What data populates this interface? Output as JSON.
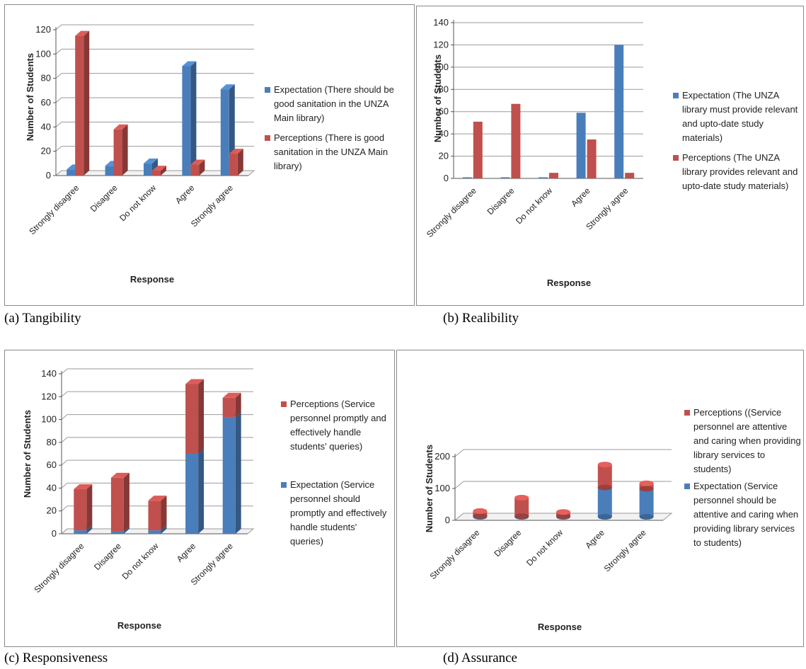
{
  "colors": {
    "expectation": "#4a7ebb",
    "perception": "#c0504d"
  },
  "captions": {
    "a": "(a) Tangibility",
    "b": "(b) Realibility",
    "c": "(c) Responsiveness",
    "d": "(d) Assurance"
  },
  "chart_data": [
    {
      "id": "a",
      "type": "bar",
      "mode": "clustered-3d",
      "ylabel": "Number of Students",
      "xlabel": "Response",
      "ylim": [
        0,
        120
      ],
      "yticks": [
        0,
        20,
        40,
        60,
        80,
        100,
        120
      ],
      "grid": true,
      "legend_position": "right",
      "categories": [
        "Strongly disagree",
        "Disagree",
        "Do not know",
        "Agree",
        "Strongly agree"
      ],
      "series": [
        {
          "name": "Expectation (There should be good sanitation in the UNZA Main library)",
          "values": [
            5,
            8,
            10,
            90,
            71
          ],
          "color": "expectation"
        },
        {
          "name": "Perceptions (There is good sanitation in the UNZA Main library)",
          "values": [
            115,
            38,
            4,
            9,
            18
          ],
          "color": "perception"
        }
      ]
    },
    {
      "id": "b",
      "type": "bar",
      "mode": "clustered",
      "ylabel": "Number of Students",
      "xlabel": "Response",
      "ylim": [
        0,
        140
      ],
      "yticks": [
        0,
        20,
        40,
        60,
        80,
        100,
        120,
        140
      ],
      "grid": true,
      "legend_position": "right",
      "categories": [
        "Strongly disagree",
        "Disagree",
        "Do not know",
        "Agree",
        "Strongly agree"
      ],
      "series": [
        {
          "name": "Expectation (The UNZA library must provide relevant and upto-date study materials)",
          "values": [
            1,
            1,
            1,
            59,
            120
          ],
          "color": "expectation"
        },
        {
          "name": "Perceptions (The UNZA library provides relevant and upto-date study materials)",
          "values": [
            51,
            67,
            5,
            35,
            5
          ],
          "color": "perception"
        }
      ]
    },
    {
      "id": "c",
      "type": "bar",
      "mode": "stacked-3d",
      "ylabel": "Number of Students",
      "xlabel": "Response",
      "ylim": [
        0,
        140
      ],
      "yticks": [
        0,
        20,
        40,
        60,
        80,
        100,
        120,
        140
      ],
      "grid": true,
      "legend_position": "right",
      "categories": [
        "Strongly disagree",
        "Disagree",
        "Do not know",
        "Agree",
        "Strongly agree"
      ],
      "series": [
        {
          "name": "Expectation (Service personnel should promptly and effectively handle students' queries)",
          "values": [
            3,
            2,
            3,
            70,
            102
          ],
          "color": "expectation"
        },
        {
          "name": "Perceptions (Service personnel promptly and effectively handle students' queries)",
          "values": [
            36,
            47,
            26,
            61,
            17
          ],
          "color": "perception"
        }
      ]
    },
    {
      "id": "d",
      "type": "bar",
      "mode": "stacked-cylinder",
      "ylabel": "Number of Students",
      "xlabel": "Response",
      "ylim": [
        0,
        200
      ],
      "yticks": [
        0,
        100,
        200
      ],
      "grid": true,
      "legend_position": "right",
      "categories": [
        "Strongly disagree",
        "Disagree",
        "Do not know",
        "Agree",
        "Strongly agree"
      ],
      "series": [
        {
          "name": "Expectation (Service personnel should be attentive and caring when providing library services to students)",
          "values": [
            3,
            2,
            2,
            92,
            88
          ],
          "color": "expectation"
        },
        {
          "name": "Perceptions ((Service personnel are attentive and caring when providing library services to students)",
          "values": [
            15,
            58,
            13,
            72,
            17
          ],
          "color": "perception"
        }
      ]
    }
  ]
}
